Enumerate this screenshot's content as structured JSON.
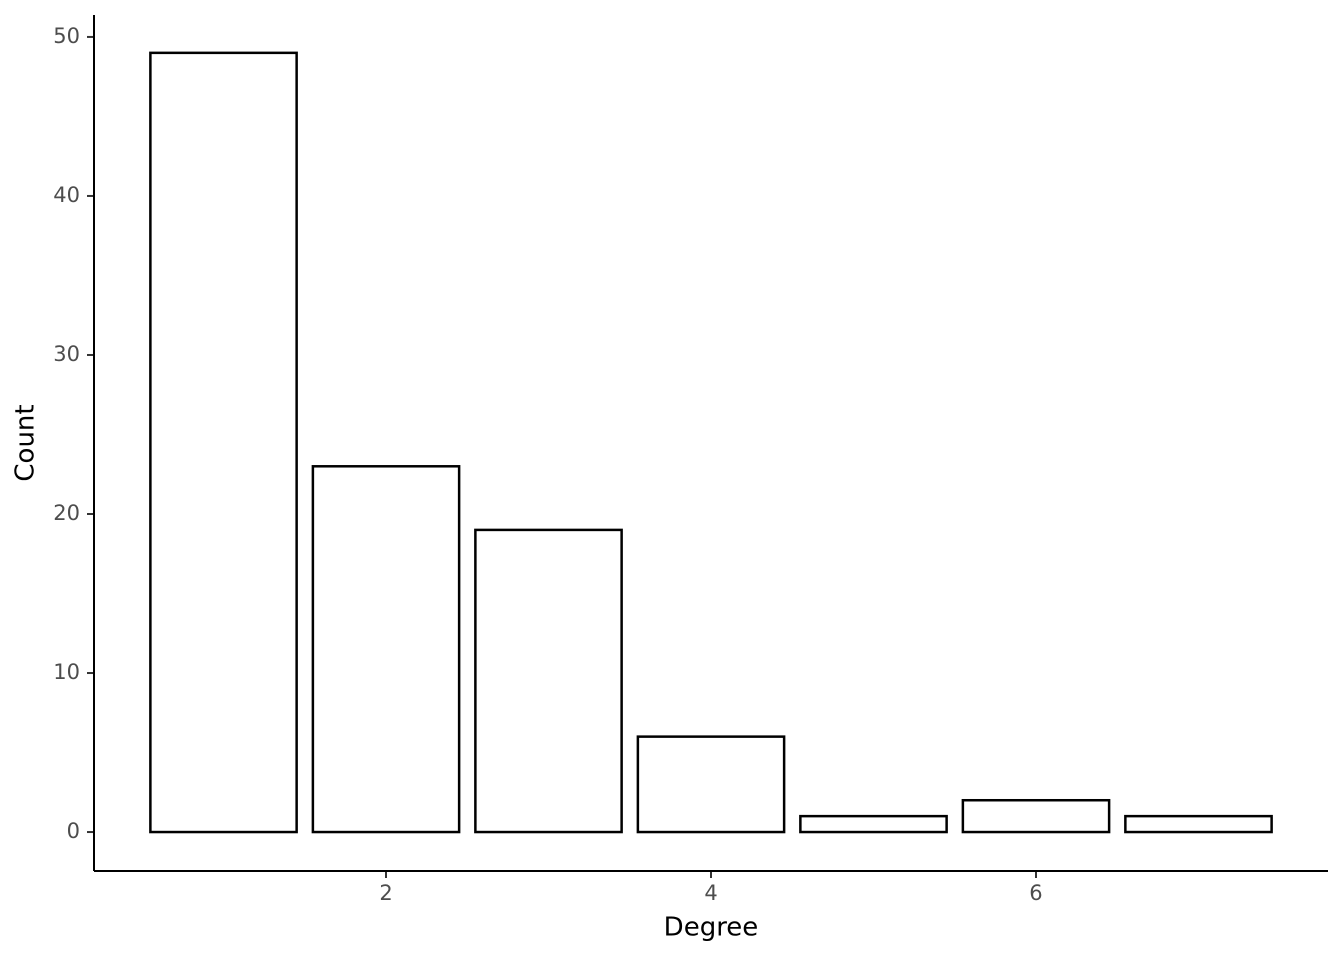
{
  "chart_data": {
    "type": "bar",
    "x_label": "Degree",
    "y_label": "Count",
    "x": [
      1,
      2,
      3,
      4,
      5,
      6,
      7
    ],
    "values": [
      49,
      23,
      19,
      6,
      1,
      2,
      1
    ],
    "color": "#ffffff",
    "edge_color": "#000000",
    "xlim": [
      0.203,
      7.797
    ],
    "xticks": [
      2,
      4,
      6
    ],
    "ylim": [
      -2.45,
      51.38
    ],
    "yticks": [
      0,
      10,
      20,
      30,
      40,
      50
    ],
    "grid": false
  }
}
